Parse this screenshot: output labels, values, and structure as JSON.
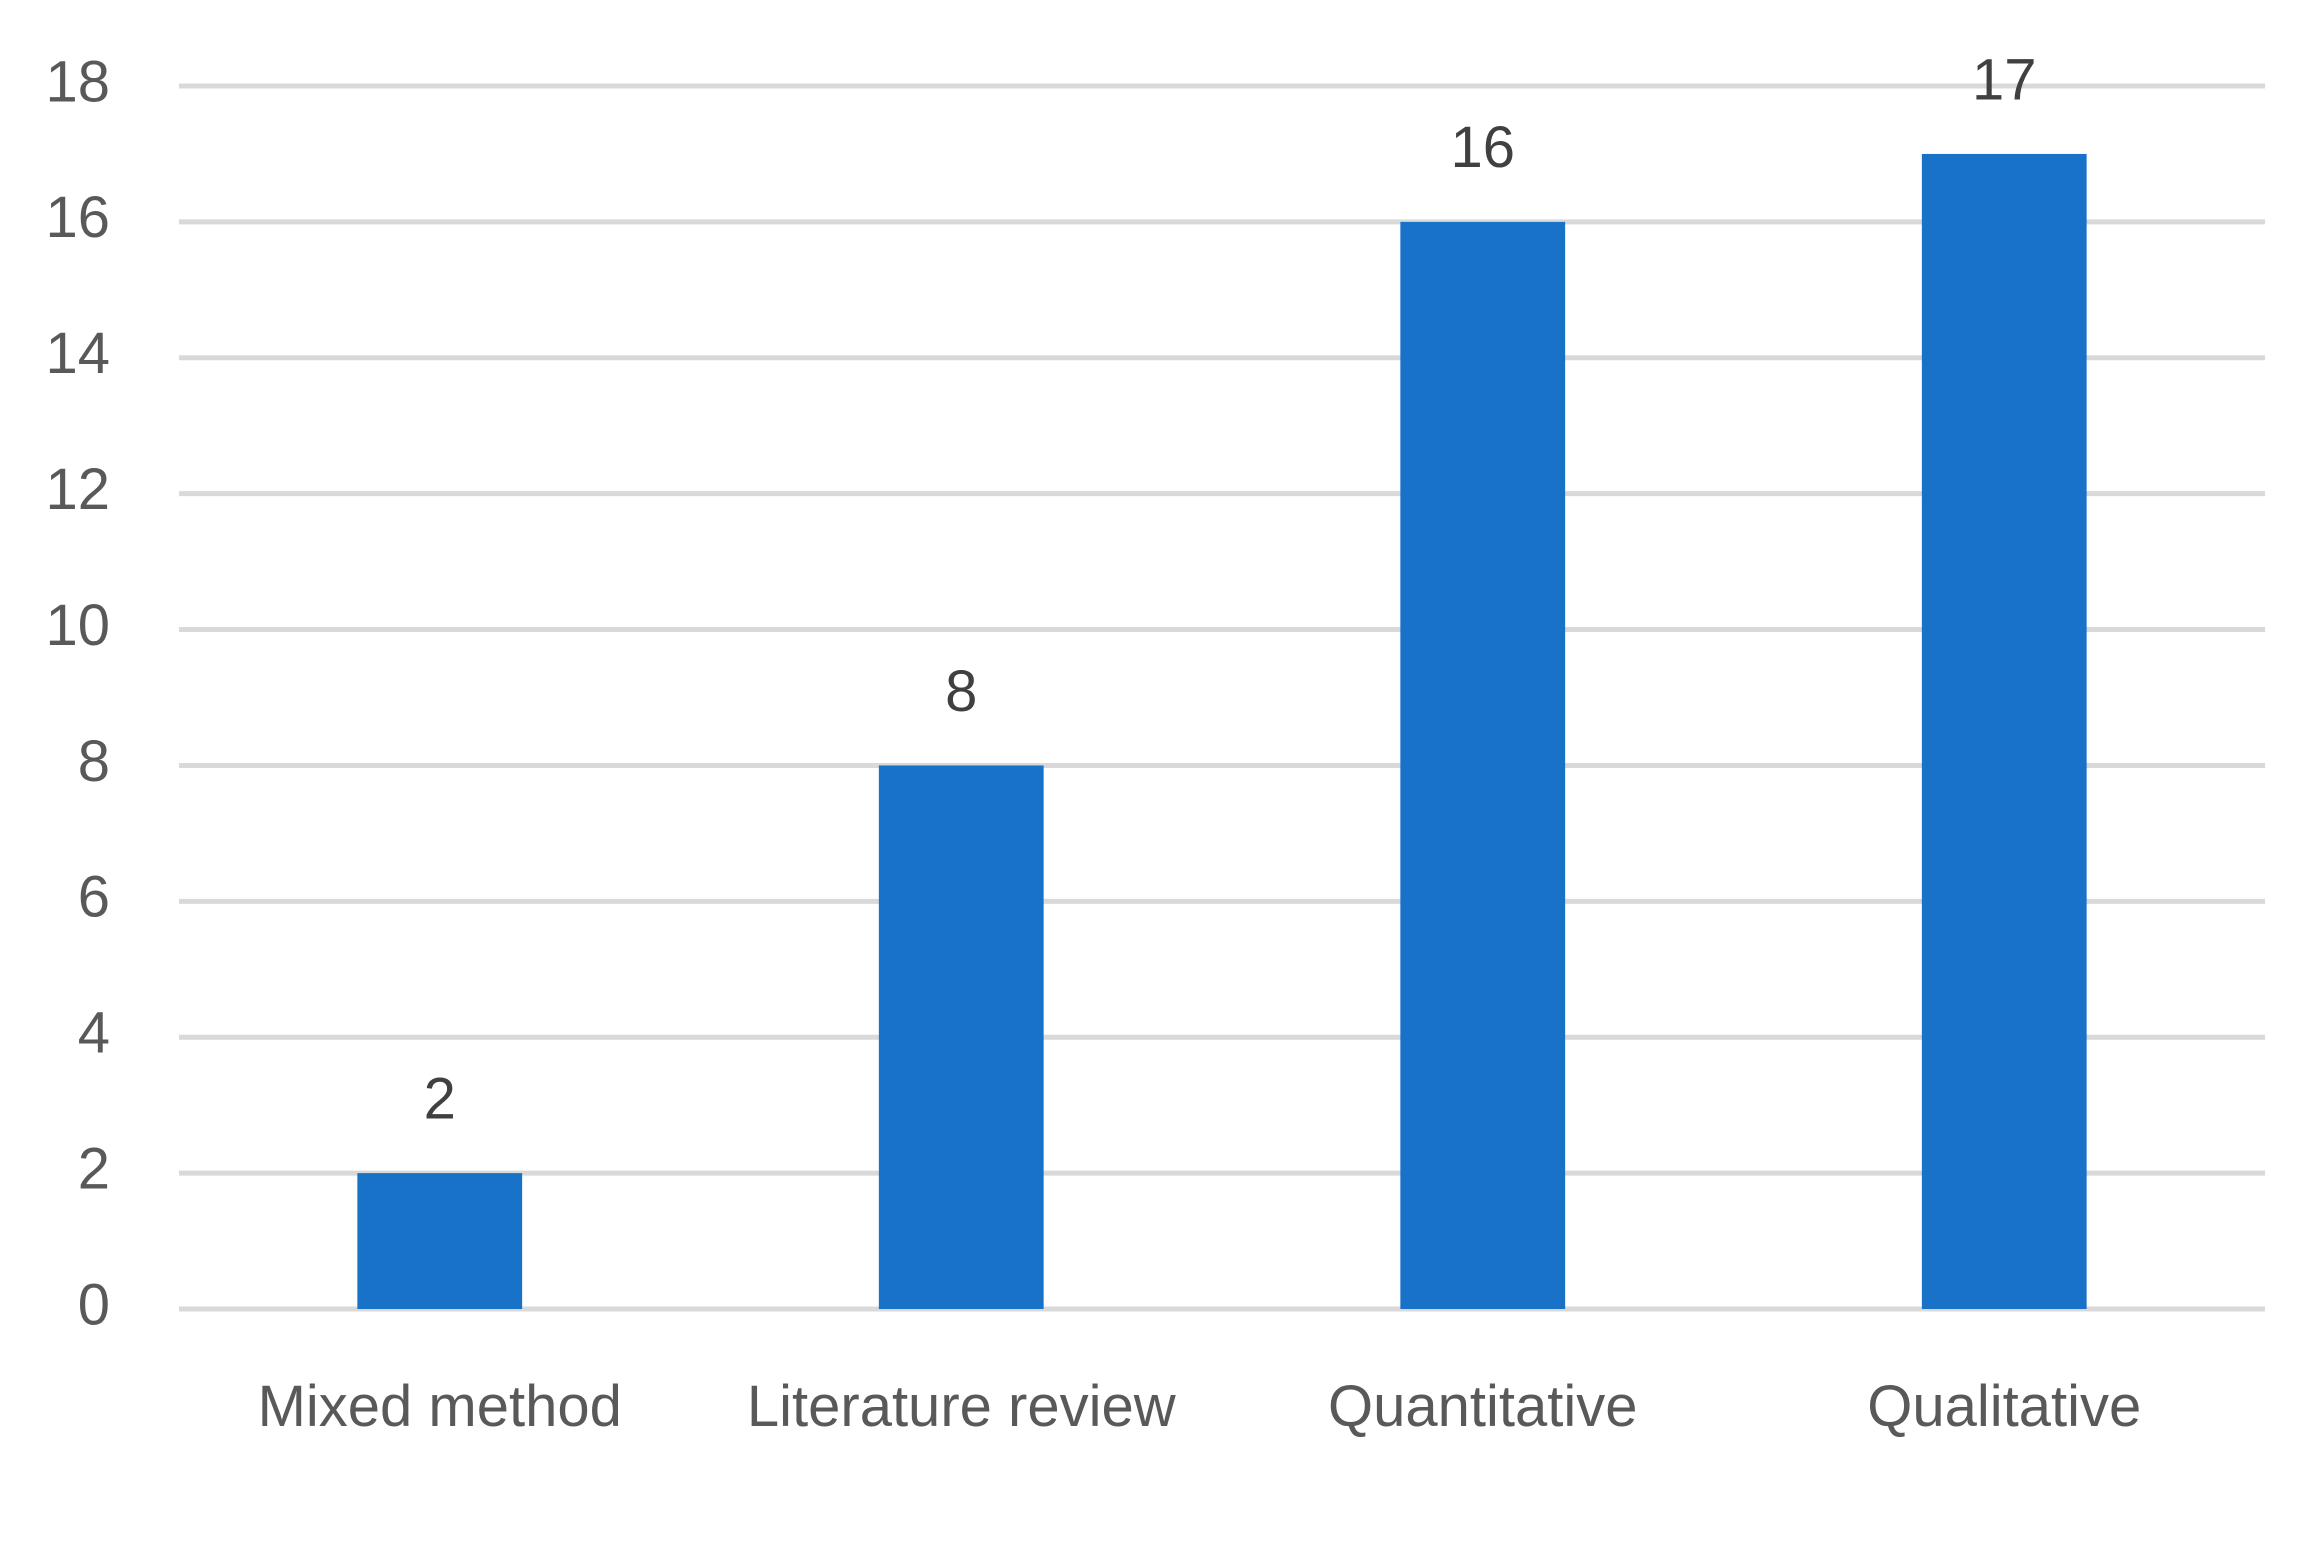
{
  "chart_data": {
    "type": "bar",
    "categories": [
      "Mixed method",
      "Literature review",
      "Quantitative",
      "Qualitative"
    ],
    "values": [
      2,
      8,
      16,
      17
    ],
    "color": "#1873c8",
    "ylim": [
      0,
      18
    ],
    "yticks": [
      0,
      2,
      4,
      6,
      8,
      10,
      12,
      14,
      16,
      18
    ],
    "grid": true
  }
}
